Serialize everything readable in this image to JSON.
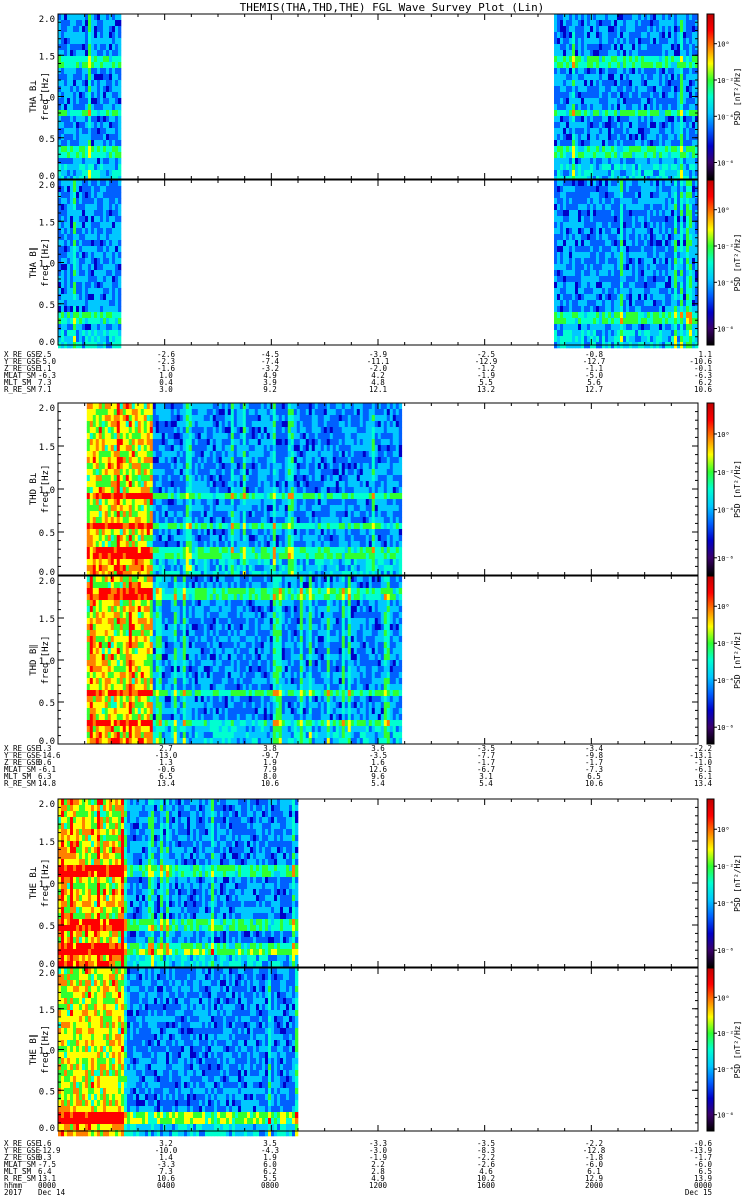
{
  "title": "THEMIS(THA,THD,THE) FGL Wave Survey Plot (Lin)",
  "colorbar": {
    "label": "PSD [nT²/Hz]",
    "ticks": [
      "10⁰",
      "10⁻²",
      "10⁻⁴",
      "10⁻⁶"
    ],
    "colors": [
      "#000000",
      "#3a006a",
      "#0000c8",
      "#0060ff",
      "#00c8ff",
      "#00ffd0",
      "#30ff30",
      "#ffff00",
      "#ff8000",
      "#ff0000",
      "#c00000"
    ]
  },
  "chart_data": [
    {
      "type": "heatmap",
      "ylabel": "THA B⊥",
      "ylabel2": "freq [Hz]",
      "ylim": [
        0.0,
        2.0
      ],
      "yticks": [
        "2.0",
        "1.5",
        "1.0",
        "0.5",
        "0.0"
      ],
      "coverage": [
        [
          0.0,
          0.095
        ],
        [
          0.775,
          1.0
        ]
      ],
      "bands": [
        0.34,
        0.84,
        1.45
      ]
    },
    {
      "type": "heatmap",
      "ylabel": "THA B∥",
      "ylabel2": "freq [Hz]",
      "ylim": [
        0.0,
        2.0
      ],
      "yticks": [
        "2.0",
        "1.5",
        "1.0",
        "0.5",
        "0.0"
      ],
      "coverage": [
        [
          0.0,
          0.095
        ],
        [
          0.775,
          1.0
        ]
      ],
      "bands": [
        0.34
      ]
    },
    {
      "type": "heatmap",
      "ylabel": "THD B⊥",
      "ylabel2": "freq [Hz]",
      "ylim": [
        0.0,
        2.0
      ],
      "yticks": [
        "2.0",
        "1.5",
        "1.0",
        "0.5",
        "0.0"
      ],
      "coverage": [
        [
          0.045,
          0.535
        ]
      ],
      "bands": [
        0.28,
        0.6,
        0.95
      ]
    },
    {
      "type": "heatmap",
      "ylabel": "THD B∥",
      "ylabel2": "freq [Hz]",
      "ylim": [
        0.0,
        2.0
      ],
      "yticks": [
        "2.0",
        "1.5",
        "1.0",
        "0.5",
        "0.0"
      ],
      "coverage": [
        [
          0.045,
          0.535
        ]
      ],
      "bands": [
        0.28,
        0.65,
        1.8
      ]
    },
    {
      "type": "heatmap",
      "ylabel": "THE B⊥",
      "ylabel2": "freq [Hz]",
      "ylim": [
        0.0,
        2.0
      ],
      "yticks": [
        "2.0",
        "1.5",
        "1.0",
        "0.5",
        "0.0"
      ],
      "coverage": [
        [
          0.0,
          0.375
        ]
      ],
      "bands": [
        0.25,
        0.55,
        1.2
      ]
    },
    {
      "type": "heatmap",
      "ylabel": "THE B∥",
      "ylabel2": "freq [Hz]",
      "ylim": [
        0.0,
        2.0
      ],
      "yticks": [
        "2.0",
        "1.5",
        "1.0",
        "0.5",
        "0.0"
      ],
      "coverage": [
        [
          0.0,
          0.375
        ]
      ],
      "bands": [
        0.22
      ]
    }
  ],
  "ephemeris": [
    {
      "labels": [
        "X_RE_GSE",
        "Y_RE_GSE",
        "Z_RE_GSE",
        "MLAT_SM",
        "MLT_SM",
        "R_RE_SM"
      ],
      "values": [
        [
          "2.5",
          "-2.6",
          "-4.5",
          "-3.9",
          "-2.5",
          "-0.8",
          "1.1"
        ],
        [
          "-5.0",
          "-2.3",
          "-7.4",
          "-11.1",
          "-12.9",
          "-12.7",
          "-10.6"
        ],
        [
          "1.1",
          "-1.6",
          "-3.2",
          "-2.0",
          "-1.2",
          "-1.1",
          "-0.1"
        ],
        [
          "-6.3",
          "1.0",
          "4.9",
          "4.2",
          "-1.9",
          "-5.0",
          "-6.3"
        ],
        [
          "7.3",
          "0.4",
          "3.9",
          "4.8",
          "5.5",
          "5.6",
          "6.2"
        ],
        [
          "7.1",
          "3.0",
          "9.2",
          "12.1",
          "13.2",
          "12.7",
          "10.6"
        ]
      ]
    },
    {
      "labels": [
        "X_RE_GSE",
        "Y_RE_GSE",
        "Z_RE_GSE",
        "MLAT_SM",
        "MLT_SM",
        "R_RE_SM"
      ],
      "values": [
        [
          "1.3",
          "2.7",
          "3.8",
          "3.6",
          "-3.5",
          "-3.4",
          "-2.2"
        ],
        [
          "-14.6",
          "-13.0",
          "-9.7",
          "-3.5",
          "-7.7",
          "-9.8",
          "-13.1"
        ],
        [
          "0.6",
          "1.3",
          "1.9",
          "1.6",
          "-1.7",
          "-1.7",
          "-1.0"
        ],
        [
          "-6.1",
          "-0.6",
          "7.9",
          "12.6",
          "-6.7",
          "-7.3",
          "-6.1"
        ],
        [
          "6.3",
          "6.5",
          "8.0",
          "9.6",
          "3.1",
          "6.5",
          "6.1"
        ],
        [
          "14.8",
          "13.4",
          "10.6",
          "5.4",
          "5.4",
          "10.6",
          "13.4"
        ]
      ]
    },
    {
      "labels": [
        "X_RE_GSE",
        "Y_RE_GSE",
        "Z_RE_GSE",
        "MLAT_SM",
        "MLT_SM",
        "R_RE_SM",
        "hhmm",
        "2017"
      ],
      "values": [
        [
          "1.6",
          "3.2",
          "3.5",
          "-3.3",
          "-3.5",
          "-2.2",
          "-0.6"
        ],
        [
          "-12.9",
          "-10.0",
          "-4.3",
          "-3.0",
          "-8.3",
          "-12.8",
          "-13.9"
        ],
        [
          "0.3",
          "1.4",
          "1.9",
          "-1.9",
          "-2.2",
          "-1.8",
          "-1.7"
        ],
        [
          "-7.5",
          "-3.3",
          "6.0",
          "2.2",
          "-2.6",
          "-6.0",
          "-6.0"
        ],
        [
          "6.4",
          "7.3",
          "6.2",
          "2.8",
          "4.6",
          "6.1",
          "6.5"
        ],
        [
          "13.1",
          "10.6",
          "5.5",
          "4.9",
          "10.2",
          "12.9",
          "13.9"
        ],
        [
          "0000",
          "0400",
          "0800",
          "1200",
          "1600",
          "2000",
          "0000"
        ],
        [
          "Dec 14",
          "",
          "",
          "",
          "",
          "",
          "Dec 15"
        ]
      ]
    }
  ]
}
